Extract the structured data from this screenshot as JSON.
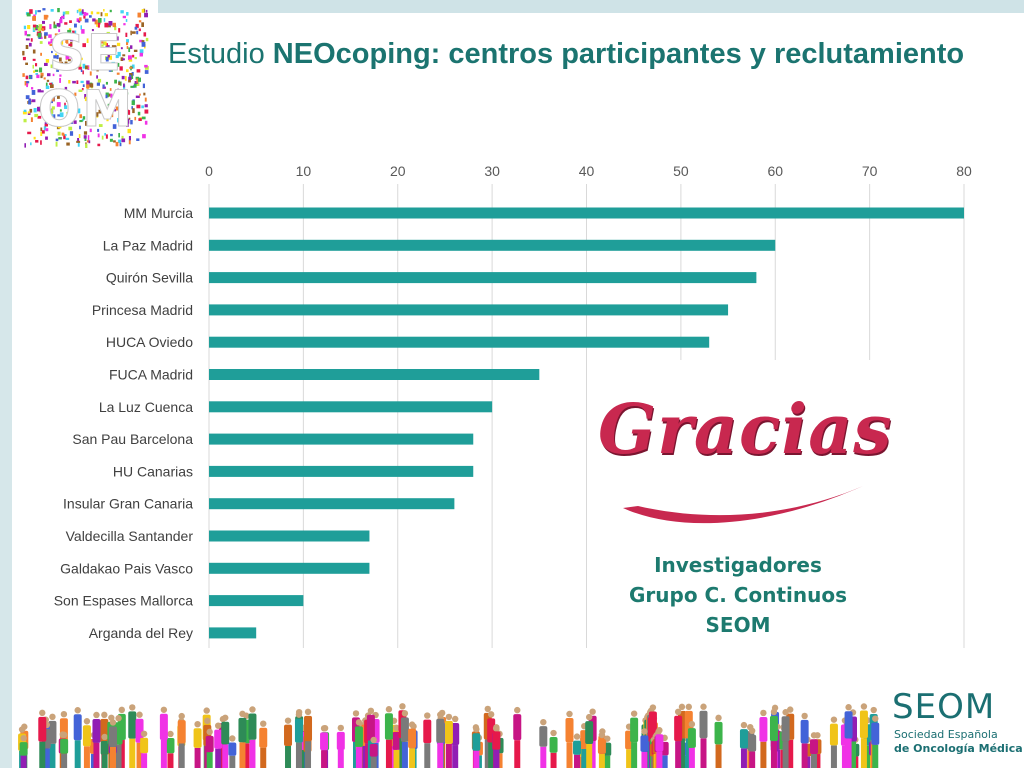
{
  "header": {
    "title_prefix": "Estudio ",
    "title_bold": "NEOcoping: centros participantes y reclutamiento",
    "logo_text": "SEOM"
  },
  "colors": {
    "bar": "#1f9e99",
    "title": "#1b7470",
    "gracias": "#c8284f",
    "thanks_text": "#1d7a6f",
    "grid": "#d9d9d9"
  },
  "chart_data": {
    "type": "bar",
    "orientation": "horizontal",
    "categories": [
      "MM Murcia",
      "La Paz Madrid",
      "Quirón Sevilla",
      "Princesa Madrid",
      "HUCA Oviedo",
      "FUCA Madrid",
      "La Luz Cuenca",
      "San Pau Barcelona",
      "HU Canarias",
      "Insular Gran Canaria",
      "Valdecilla Santander",
      "Galdakao Pais Vasco",
      "Son Espases Mallorca",
      "Arganda del Rey"
    ],
    "values": [
      80,
      60,
      58,
      55,
      53,
      35,
      30,
      28,
      28,
      26,
      17,
      17,
      10,
      5
    ],
    "xlim": [
      0,
      80
    ],
    "xticks": [
      0,
      10,
      20,
      30,
      40,
      50,
      60,
      70,
      80
    ],
    "axis_position": "top",
    "grid": true,
    "title": "",
    "xlabel": "",
    "ylabel": ""
  },
  "thanks": {
    "heading": "Gracias",
    "line1": "Investigadores",
    "line2": "Grupo C. Continuos",
    "line3": "SEOM"
  },
  "brand": {
    "name": "SEOM",
    "sub1": "Sociedad Española",
    "sub2": "de Oncología Médica"
  }
}
